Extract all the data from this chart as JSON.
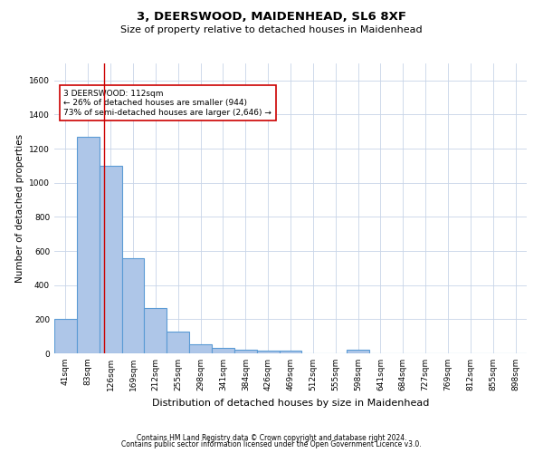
{
  "title": "3, DEERSWOOD, MAIDENHEAD, SL6 8XF",
  "subtitle": "Size of property relative to detached houses in Maidenhead",
  "xlabel": "Distribution of detached houses by size in Maidenhead",
  "ylabel": "Number of detached properties",
  "footnote1": "Contains HM Land Registry data © Crown copyright and database right 2024.",
  "footnote2": "Contains public sector information licensed under the Open Government Licence v3.0.",
  "categories": [
    "41sqm",
    "83sqm",
    "126sqm",
    "169sqm",
    "212sqm",
    "255sqm",
    "298sqm",
    "341sqm",
    "384sqm",
    "426sqm",
    "469sqm",
    "512sqm",
    "555sqm",
    "598sqm",
    "641sqm",
    "684sqm",
    "727sqm",
    "769sqm",
    "812sqm",
    "855sqm",
    "898sqm"
  ],
  "values": [
    200,
    1270,
    1100,
    560,
    265,
    125,
    55,
    30,
    20,
    15,
    15,
    0,
    0,
    20,
    0,
    0,
    0,
    0,
    0,
    0,
    0
  ],
  "bar_color": "#aec6e8",
  "bar_edge_color": "#5b9bd5",
  "vline_x": 1.72,
  "vline_color": "#cc0000",
  "annotation_text": "3 DEERSWOOD: 112sqm\n← 26% of detached houses are smaller (944)\n73% of semi-detached houses are larger (2,646) →",
  "annotation_box_color": "#ffffff",
  "annotation_box_edge": "#cc0000",
  "ylim": [
    0,
    1700
  ],
  "yticks": [
    0,
    200,
    400,
    600,
    800,
    1000,
    1200,
    1400,
    1600
  ],
  "background_color": "#ffffff",
  "grid_color": "#c8d4e8",
  "title_fontsize": 9.5,
  "subtitle_fontsize": 8,
  "label_fontsize": 7.5,
  "tick_fontsize": 6.5,
  "footnote_fontsize": 5.5
}
